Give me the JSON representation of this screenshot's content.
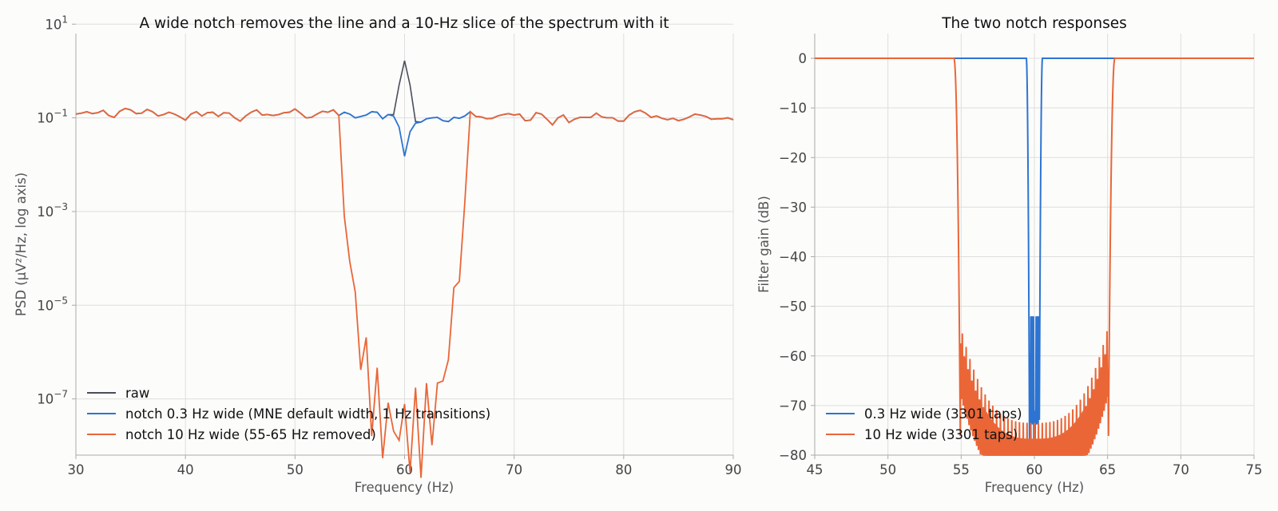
{
  "chart_data": [
    {
      "type": "line",
      "title": "A wide notch removes the line and a 10-Hz slice of the spectrum with it",
      "xlabel": "Frequency (Hz)",
      "ylabel": "PSD (µV²/Hz, log axis)",
      "xlim": [
        30,
        90
      ],
      "ylim_log10": [
        -8.2,
        0.8
      ],
      "yscale": "log",
      "grid": true,
      "legend_position": "lower-left",
      "xticks": [
        "30",
        "40",
        "50",
        "60",
        "70",
        "80",
        "90"
      ],
      "ytick_values_log10": [
        1,
        -1,
        -3,
        -5,
        -7
      ],
      "x": [
        30.0,
        30.5,
        31.0,
        31.5,
        32.0,
        32.5,
        33.0,
        33.5,
        34.0,
        34.5,
        35.0,
        35.5,
        36.0,
        36.5,
        37.0,
        37.5,
        38.0,
        38.5,
        39.0,
        39.5,
        40.0,
        40.5,
        41.0,
        41.5,
        42.0,
        42.5,
        43.0,
        43.5,
        44.0,
        44.5,
        45.0,
        45.5,
        46.0,
        46.5,
        47.0,
        47.5,
        48.0,
        48.5,
        49.0,
        49.5,
        50.0,
        50.5,
        51.0,
        51.5,
        52.0,
        52.5,
        53.0,
        53.5,
        54.0,
        54.5,
        55.0,
        55.5,
        56.0,
        56.5,
        57.0,
        57.5,
        58.0,
        58.5,
        59.0,
        59.5,
        60.0,
        60.5,
        61.0,
        61.5,
        62.0,
        62.5,
        63.0,
        63.5,
        64.0,
        64.5,
        65.0,
        65.5,
        66.0,
        66.5,
        67.0,
        67.5,
        68.0,
        68.5,
        69.0,
        69.5,
        70.0,
        70.5,
        71.0,
        71.5,
        72.0,
        72.5,
        73.0,
        73.5,
        74.0,
        74.5,
        75.0,
        75.5,
        76.0,
        76.5,
        77.0,
        77.5,
        78.0,
        78.5,
        79.0,
        79.5,
        80.0,
        80.5,
        81.0,
        81.5,
        82.0,
        82.5,
        83.0,
        83.5,
        84.0,
        84.5,
        85.0,
        85.5,
        86.0,
        86.5,
        87.0,
        87.5,
        88.0,
        88.5,
        89.0,
        89.5,
        90.0
      ],
      "base_log10": [
        -0.92,
        -0.9,
        -0.87,
        -0.91,
        -0.89,
        -0.84,
        -0.95,
        -0.99,
        -0.86,
        -0.8,
        -0.83,
        -0.91,
        -0.9,
        -0.82,
        -0.87,
        -0.96,
        -0.93,
        -0.88,
        -0.92,
        -0.98,
        -1.05,
        -0.92,
        -0.87,
        -0.96,
        -0.89,
        -0.88,
        -0.97,
        -0.89,
        -0.9,
        -1.0,
        -1.07,
        -0.96,
        -0.88,
        -0.83,
        -0.94,
        -0.93,
        -0.95,
        -0.93,
        -0.89,
        -0.88,
        -0.81,
        -0.9,
        -1.0,
        -0.99,
        -0.92,
        -0.86,
        -0.88,
        -0.83,
        -0.95,
        -0.88,
        -0.92,
        -1.0,
        -0.97,
        -0.94,
        -0.87,
        -0.88,
        -1.02,
        -0.93,
        -0.93,
        -1.0,
        -1.02,
        -1.1,
        -1.08,
        -1.09,
        -1.02,
        -1.0,
        -0.99,
        -1.06,
        -1.08,
        -0.99,
        -1.01,
        -0.96,
        -0.87,
        -0.97,
        -0.98,
        -1.02,
        -1.01,
        -0.96,
        -0.93,
        -0.91,
        -0.94,
        -0.92,
        -1.06,
        -1.05,
        -0.89,
        -0.92,
        -1.03,
        -1.15,
        -1.0,
        -0.94,
        -1.1,
        -1.03,
        -0.99,
        -0.99,
        -0.99,
        -0.9,
        -0.98,
        -1.0,
        -1.0,
        -1.07,
        -1.07,
        -0.94,
        -0.87,
        -0.84,
        -0.9,
        -0.99,
        -0.96,
        -1.01,
        -1.04,
        -1.01,
        -1.06,
        -1.03,
        -0.98,
        -0.92,
        -0.94,
        -0.97,
        -1.03,
        -1.02,
        -1.02,
        -1.0,
        -1.04,
        -1.02,
        -0.99,
        -1.03,
        -0.95
      ],
      "series": [
        {
          "name": "raw",
          "color": "#4a4e5a",
          "spike": {
            "center": 60.0,
            "peak_log10": 0.22,
            "shoulders_log10": [
              -0.3,
              -0.6
            ]
          }
        },
        {
          "name": "notch 0.3 Hz wide (MNE default width, 1 Hz transitions)",
          "color": "#2d74d2",
          "dip": {
            "center": 60.0,
            "floor_log10": -1.82
          }
        },
        {
          "name": "notch 10 Hz wide (55-65 Hz removed)",
          "color": "#ea6637",
          "dip": {
            "from": 54.0,
            "to": 66.0,
            "floor_log10": -7.65
          }
        }
      ]
    },
    {
      "type": "line",
      "title": "The two notch responses",
      "xlabel": "Frequency (Hz)",
      "ylabel": "Filter gain (dB)",
      "xlim": [
        45,
        75
      ],
      "ylim": [
        -80,
        5
      ],
      "grid": true,
      "legend_position": "lower-left",
      "xticks": [
        "45",
        "50",
        "55",
        "60",
        "65",
        "70",
        "75"
      ],
      "yticks": [
        "0",
        "−10",
        "−20",
        "−30",
        "−40",
        "−50",
        "−60",
        "−70",
        "−80"
      ],
      "ytick_values": [
        0,
        -10,
        -20,
        -30,
        -40,
        -50,
        -60,
        -70,
        -80
      ],
      "series": [
        {
          "name": "0.3 Hz wide (3301 taps)",
          "color": "#2d74d2",
          "stop_band": [
            59.45,
            60.55
          ],
          "floor_db": -74,
          "ripple_peak_db": -52
        },
        {
          "name": "10 Hz wide (3301 taps)",
          "color": "#ea6637",
          "stop_band": [
            54.95,
            65.05
          ],
          "floor_db": -73.5,
          "ripple_edge_db": -54
        }
      ]
    }
  ]
}
